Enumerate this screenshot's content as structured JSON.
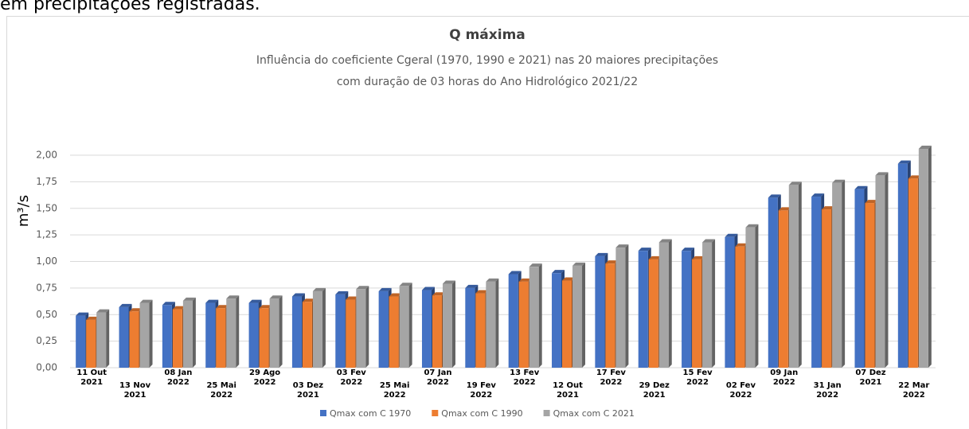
{
  "caption": "em precipitações registradas.",
  "chart_data": {
    "type": "bar",
    "title": "Q máxima",
    "subtitle": [
      "Influência do coeficiente Cgeral (1970, 1990 e 2021) nas 20 maiores precipitações",
      "com duração de 03 horas do Ano Hidrológico 2021/22"
    ],
    "ylabel": "m³/s",
    "categories": [
      "11 Out 2021",
      "13 Nov 2021",
      "08 Jan 2022",
      "25 Mai 2022",
      "29 Ago 2022",
      "03 Dez 2021",
      "03 Fev 2022",
      "25 Mai 2022",
      "07 Jan 2022",
      "19 Fev 2022",
      "13 Fev 2022",
      "12 Out 2021",
      "17 Fev 2022",
      "29 Dez 2021",
      "15 Fev 2022",
      "02 Fev 2022",
      "09 Jan 2022",
      "31 Jan 2022",
      "07 Dez 2021",
      "22 Mar 2022"
    ],
    "series": [
      {
        "name": "Qmax com C 1970",
        "color": "#4472c4",
        "values": [
          0.49,
          0.57,
          0.59,
          0.61,
          0.61,
          0.67,
          0.69,
          0.72,
          0.73,
          0.75,
          0.88,
          0.89,
          1.05,
          1.1,
          1.1,
          1.23,
          1.6,
          1.61,
          1.68,
          1.92
        ]
      },
      {
        "name": "Qmax com C 1990",
        "color": "#ed7d31",
        "values": [
          0.45,
          0.53,
          0.55,
          0.56,
          0.56,
          0.62,
          0.64,
          0.67,
          0.68,
          0.7,
          0.81,
          0.82,
          0.98,
          1.02,
          1.02,
          1.14,
          1.48,
          1.49,
          1.55,
          1.78
        ]
      },
      {
        "name": "Qmax com C 2021",
        "color": "#a5a5a5",
        "values": [
          0.52,
          0.61,
          0.63,
          0.65,
          0.65,
          0.72,
          0.74,
          0.77,
          0.79,
          0.81,
          0.95,
          0.96,
          1.13,
          1.18,
          1.18,
          1.32,
          1.72,
          1.74,
          1.81,
          2.06
        ]
      }
    ],
    "ylim": [
      0,
      2
    ],
    "yticks": [
      {
        "value": 0,
        "label": "0,00"
      },
      {
        "value": 0.25,
        "label": "0,25"
      },
      {
        "value": 0.5,
        "label": "0,50"
      },
      {
        "value": 0.75,
        "label": "0,75"
      },
      {
        "value": 1,
        "label": "1,00"
      },
      {
        "value": 1.25,
        "label": "1,25"
      },
      {
        "value": 1.5,
        "label": "1,50"
      },
      {
        "value": 1.75,
        "label": "1,75"
      },
      {
        "value": 2,
        "label": "2,00"
      }
    ],
    "grid": true,
    "legend": "bottom"
  }
}
